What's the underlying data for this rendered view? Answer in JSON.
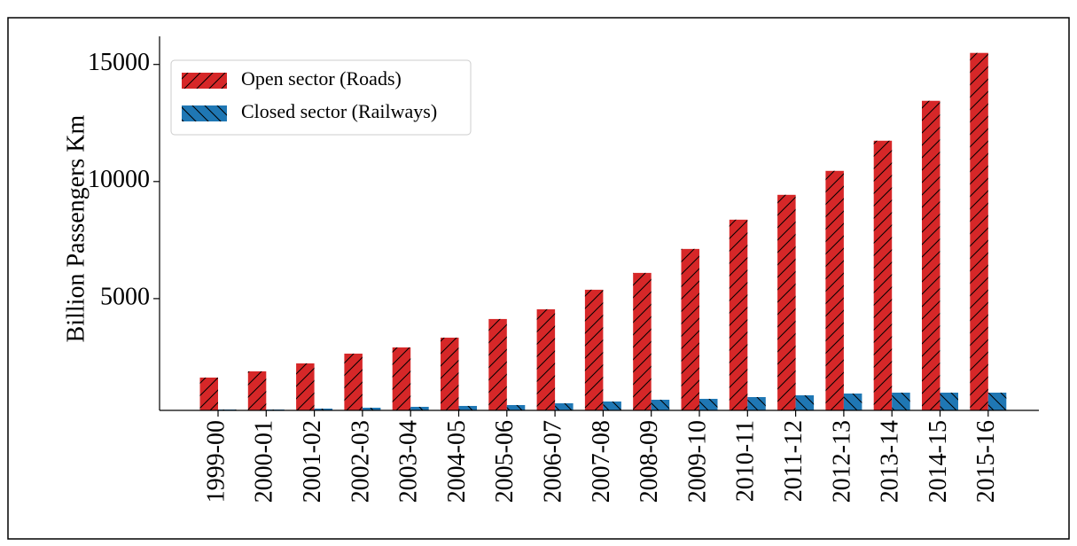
{
  "chart_data": {
    "type": "bar",
    "ylabel": "Billion Passengers Km",
    "categories": [
      "1999-00",
      "2000-01",
      "2001-02",
      "2002-03",
      "2003-04",
      "2004-05",
      "2005-06",
      "2006-07",
      "2007-08",
      "2008-09",
      "2009-10",
      "2010-11",
      "2011-12",
      "2012-13",
      "2013-14",
      "2014-15",
      "2015-16"
    ],
    "series": [
      {
        "name": "Open sector (Roads)",
        "color": "#d62728",
        "hatch": "//",
        "values": [
          1628,
          1894,
          2234,
          2651,
          2916,
          3333,
          4129,
          4545,
          5379,
          6098,
          7121,
          8371,
          9432,
          10455,
          11742,
          13447,
          15492
        ]
      },
      {
        "name": "Closed sector (Railways)",
        "color": "#1f77b4",
        "hatch": "\\\\",
        "values": [
          265,
          265,
          303,
          341,
          379,
          417,
          455,
          530,
          606,
          682,
          720,
          795,
          871,
          947,
          985,
          985,
          985
        ]
      }
    ],
    "ylim": [
      227,
      16200
    ],
    "yticks": [
      5000,
      10000,
      15000
    ],
    "legend": "upper left"
  }
}
